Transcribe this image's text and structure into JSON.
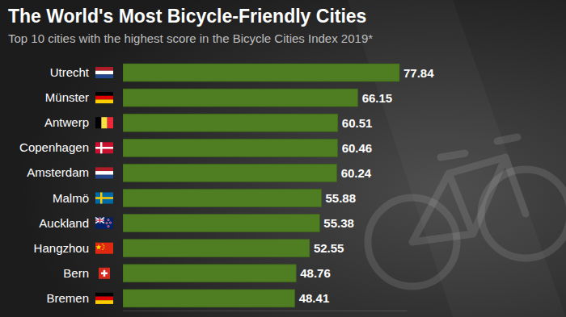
{
  "chart_data": {
    "type": "bar",
    "orientation": "horizontal",
    "title": "The World's Most Bicycle-Friendly Cities",
    "subtitle": "Top 10 cities with the highest score in the Bicycle Cities Index 2019*",
    "categories": [
      "Utrecht",
      "Münster",
      "Antwerp",
      "Copenhagen",
      "Amsterdam",
      "Malmö",
      "Auckland",
      "Hangzhou",
      "Bern",
      "Bremen"
    ],
    "values": [
      77.84,
      66.15,
      60.51,
      60.46,
      60.24,
      55.88,
      55.38,
      52.55,
      48.76,
      48.41
    ],
    "color": "#4f7d22",
    "xlim": [
      0,
      80
    ],
    "data_labels": true,
    "tick_labels": "y",
    "grid": false
  }
}
